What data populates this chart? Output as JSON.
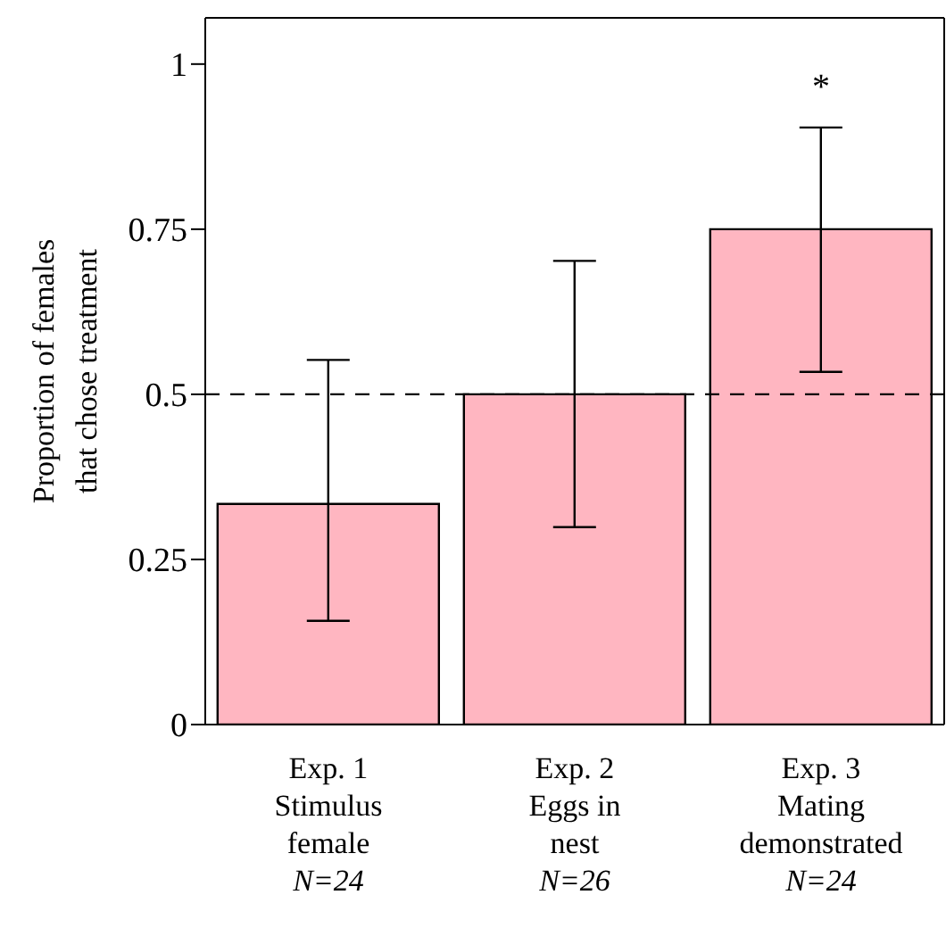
{
  "chart_data": {
    "type": "bar",
    "ylabel": "Proportion of females\nthat chose treatment",
    "categories": [
      "Exp. 1\nStimulus\nfemale\nN=24",
      "Exp. 2\nEggs in\nnest\nN=26",
      "Exp. 3\nMating\ndemonstrated\nN=24"
    ],
    "values": [
      0.334,
      0.5,
      0.75
    ],
    "color": "#ffb6c1",
    "errors": [
      [
        0.157,
        0.552
      ],
      [
        0.299,
        0.702
      ],
      [
        0.534,
        0.904
      ]
    ],
    "ylim": [
      0,
      1.07
    ],
    "yticks": [
      0,
      0.25,
      0.5,
      0.75,
      1
    ],
    "ref_lines": [
      {
        "axis": "y",
        "value": 0.5,
        "label": null,
        "color": "#000000",
        "line_style": "dashed"
      }
    ],
    "annotations": [
      "*"
    ],
    "grid": false,
    "legend": false
  }
}
